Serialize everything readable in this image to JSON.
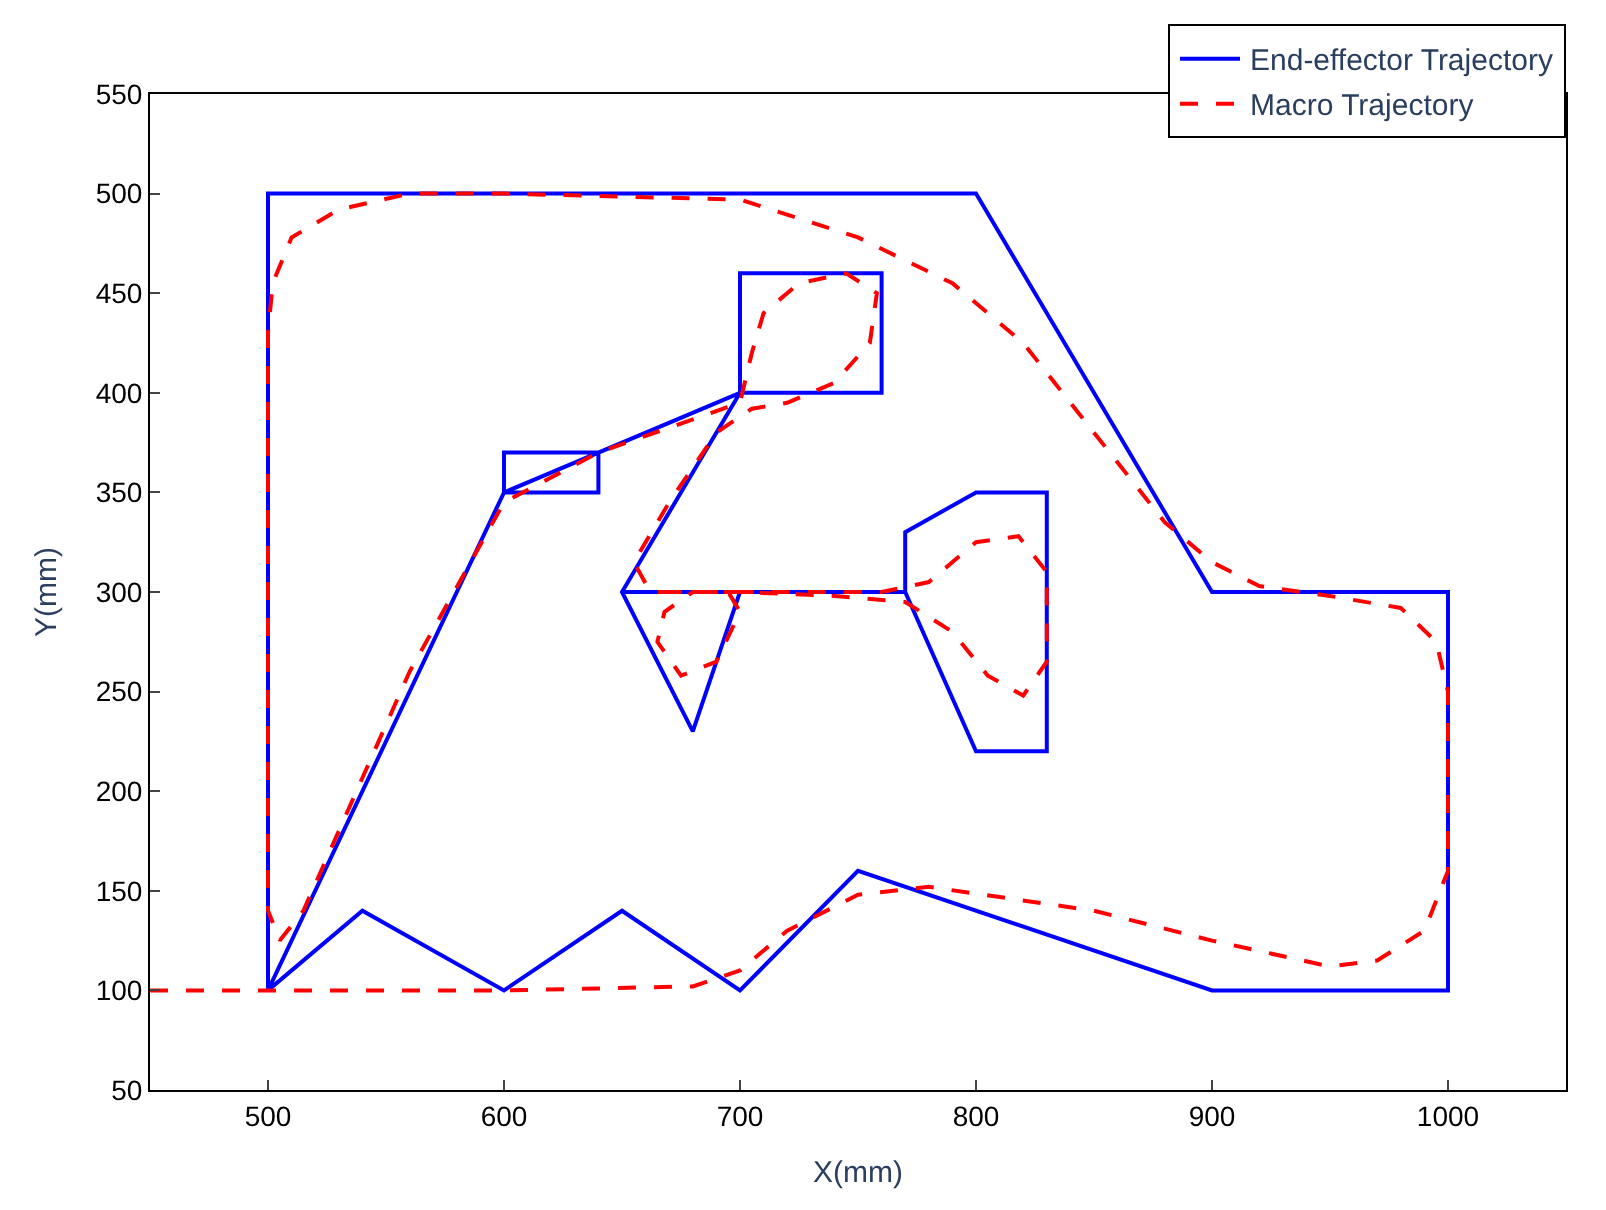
{
  "chart_data": {
    "type": "line",
    "xlabel": "X(mm)",
    "ylabel": "Y(mm)",
    "xlim": [
      450,
      1050
    ],
    "xticks": [
      500,
      600,
      700,
      800,
      900,
      1000
    ],
    "ylim": [
      50,
      550
    ],
    "yticks": [
      50,
      100,
      150,
      200,
      250,
      300,
      350,
      400,
      450,
      500,
      550
    ],
    "legend": "top right",
    "series": [
      {
        "name": "End-effector Trajectory",
        "color": "#0000ff",
        "line_style": "solid",
        "x": [
          500,
          500,
          800,
          900,
          1000,
          1000,
          900,
          750,
          700,
          650,
          600,
          540,
          500,
          600,
          640,
          640,
          600,
          600,
          700,
          700,
          760,
          760,
          700,
          650,
          680,
          700,
          650,
          770,
          770,
          800,
          830,
          830,
          800,
          770
        ],
        "values": [
          100,
          500,
          500,
          300,
          300,
          100,
          100,
          160,
          100,
          140,
          100,
          140,
          100,
          350,
          350,
          370,
          370,
          350,
          400,
          460,
          460,
          400,
          400,
          300,
          230,
          300,
          300,
          300,
          330,
          350,
          350,
          220,
          220,
          300
        ]
      },
      {
        "name": "Macro Trajectory",
        "color": "#ff0000",
        "line_style": "dashed",
        "x": [
          450,
          500,
          600,
          680,
          700,
          720,
          750,
          780,
          850,
          900,
          950,
          970,
          990,
          1000,
          1000,
          995,
          980,
          950,
          920,
          900,
          880,
          850,
          820,
          790,
          750,
          700,
          600,
          560,
          530,
          510,
          502,
          500,
          500,
          505,
          515,
          560,
          600,
          640,
          700,
          705,
          710,
          725,
          745,
          758,
          755,
          740,
          720,
          705,
          690,
          670,
          655,
          662,
          680,
          695,
          700,
          690,
          675,
          665,
          668,
          680,
          700,
          740,
          770,
          790,
          805,
          820,
          830,
          830,
          818,
          800,
          780,
          760,
          720,
          700,
          680,
          665
        ],
        "values": [
          100,
          100,
          100,
          102,
          110,
          130,
          148,
          152,
          140,
          125,
          112,
          115,
          130,
          160,
          250,
          275,
          292,
          298,
          303,
          315,
          335,
          380,
          425,
          455,
          478,
          497,
          500,
          500,
          492,
          478,
          455,
          430,
          140,
          125,
          140,
          260,
          345,
          370,
          395,
          420,
          440,
          455,
          460,
          450,
          425,
          405,
          395,
          392,
          380,
          345,
          315,
          300,
          300,
          300,
          290,
          265,
          258,
          275,
          290,
          300,
          300,
          298,
          295,
          280,
          258,
          248,
          265,
          310,
          328,
          325,
          305,
          300,
          300,
          300,
          300,
          300
        ]
      }
    ]
  }
}
